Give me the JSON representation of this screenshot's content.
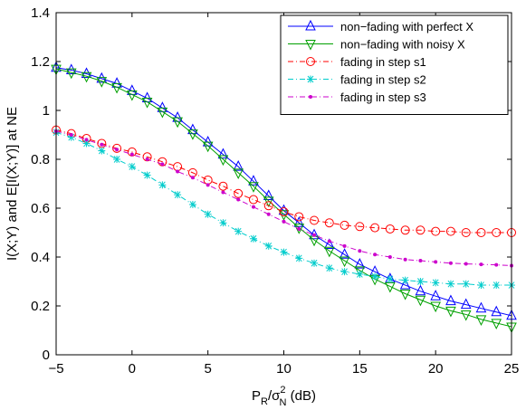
{
  "chart_data": {
    "type": "line",
    "title": "",
    "xlabel": {
      "main": "P",
      "sub1": "R",
      "mid": "/σ",
      "sup": "2",
      "sub2": "N",
      "tail": " (dB)"
    },
    "ylabel": "I(X;Y) and E[I(X;Y)] at NE",
    "xlim": [
      -5,
      25
    ],
    "ylim": [
      0,
      1.4
    ],
    "x_ticks": [
      -5,
      0,
      5,
      10,
      15,
      20,
      25
    ],
    "y_ticks": [
      0,
      0.2,
      0.4,
      0.6,
      0.8,
      1,
      1.2,
      1.4
    ],
    "x_tick_labels": [
      "−5",
      "0",
      "5",
      "10",
      "15",
      "20",
      "25"
    ],
    "y_tick_labels": [
      "0",
      "0.2",
      "0.4",
      "0.6",
      "0.8",
      "1",
      "1.2",
      "1.4"
    ],
    "grid": false,
    "legend_position": "top-right",
    "x": [
      -5,
      -4,
      -3,
      -2,
      -1,
      0,
      1,
      2,
      3,
      4,
      5,
      6,
      7,
      8,
      9,
      10,
      11,
      12,
      13,
      14,
      15,
      16,
      17,
      18,
      19,
      20,
      21,
      22,
      23,
      24,
      25
    ],
    "series": [
      {
        "name": "non−fading with perfect X",
        "color": "#0000ff",
        "line_style": "solid",
        "marker": "triangle-up",
        "values": [
          1.175,
          1.165,
          1.15,
          1.13,
          1.11,
          1.08,
          1.05,
          1.01,
          0.97,
          0.92,
          0.87,
          0.82,
          0.77,
          0.71,
          0.65,
          0.59,
          0.54,
          0.49,
          0.45,
          0.41,
          0.37,
          0.34,
          0.31,
          0.285,
          0.26,
          0.24,
          0.22,
          0.205,
          0.19,
          0.175,
          0.16
        ]
      },
      {
        "name": "non−fading with noisy X",
        "color": "#00a000",
        "line_style": "solid",
        "marker": "triangle-down",
        "values": [
          1.17,
          1.155,
          1.14,
          1.12,
          1.095,
          1.065,
          1.035,
          0.995,
          0.955,
          0.905,
          0.855,
          0.8,
          0.745,
          0.69,
          0.63,
          0.575,
          0.52,
          0.47,
          0.425,
          0.385,
          0.345,
          0.31,
          0.28,
          0.25,
          0.225,
          0.2,
          0.18,
          0.165,
          0.145,
          0.13,
          0.115
        ]
      },
      {
        "name": "fading in step s1",
        "color": "#ff0000",
        "line_style": "dashdot",
        "marker": "circle",
        "values": [
          0.92,
          0.905,
          0.885,
          0.865,
          0.845,
          0.83,
          0.81,
          0.79,
          0.77,
          0.745,
          0.715,
          0.69,
          0.66,
          0.635,
          0.61,
          0.585,
          0.565,
          0.55,
          0.54,
          0.53,
          0.525,
          0.52,
          0.515,
          0.51,
          0.51,
          0.505,
          0.505,
          0.5,
          0.5,
          0.5,
          0.5
        ]
      },
      {
        "name": "fading in step s2",
        "color": "#00cccc",
        "line_style": "dashdot",
        "marker": "asterisk",
        "values": [
          0.91,
          0.89,
          0.865,
          0.835,
          0.8,
          0.77,
          0.735,
          0.695,
          0.655,
          0.615,
          0.575,
          0.54,
          0.505,
          0.475,
          0.445,
          0.42,
          0.395,
          0.375,
          0.355,
          0.34,
          0.33,
          0.32,
          0.31,
          0.305,
          0.3,
          0.295,
          0.29,
          0.29,
          0.285,
          0.285,
          0.285
        ]
      },
      {
        "name": "fading in step s3",
        "color": "#cc00cc",
        "line_style": "dashdot",
        "marker": "dot",
        "values": [
          0.915,
          0.9,
          0.88,
          0.86,
          0.84,
          0.82,
          0.8,
          0.78,
          0.75,
          0.725,
          0.695,
          0.665,
          0.635,
          0.605,
          0.575,
          0.545,
          0.515,
          0.49,
          0.465,
          0.445,
          0.425,
          0.41,
          0.4,
          0.39,
          0.385,
          0.38,
          0.375,
          0.372,
          0.37,
          0.368,
          0.365
        ]
      }
    ]
  }
}
